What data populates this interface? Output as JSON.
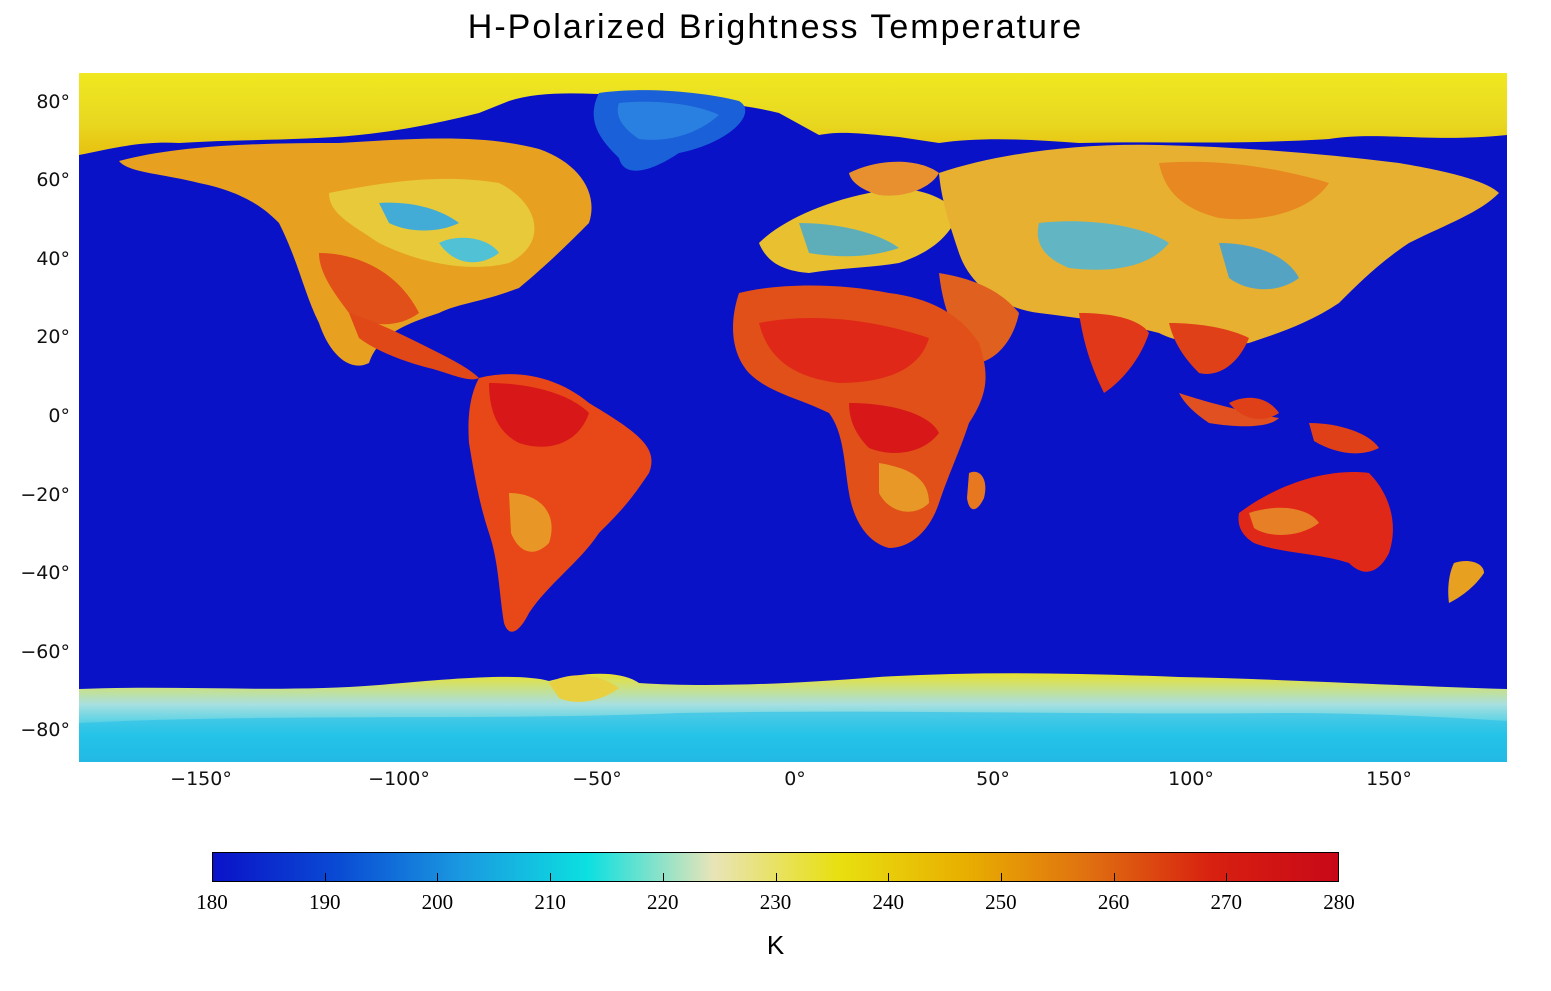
{
  "title": "H-Polarized Brightness Temperature",
  "map": {
    "extent": {
      "lon": [
        -180,
        180
      ],
      "lat": [
        -87,
        87
      ]
    },
    "ocean_color": "#0a12c8",
    "ocean_value_K": 180,
    "regions": [
      {
        "name": "Arctic / far north",
        "value_K": 238
      },
      {
        "name": "Greenland interior",
        "value_K": 205
      },
      {
        "name": "North America",
        "value_K": 252
      },
      {
        "name": "Central America / Mexico",
        "value_K": 265
      },
      {
        "name": "South America",
        "value_K": 268
      },
      {
        "name": "Europe",
        "value_K": 245
      },
      {
        "name": "Africa",
        "value_K": 268
      },
      {
        "name": "Arabia",
        "value_K": 262
      },
      {
        "name": "Asia",
        "value_K": 252
      },
      {
        "name": "India / SE Asia",
        "value_K": 268
      },
      {
        "name": "Australia",
        "value_K": 272
      },
      {
        "name": "Antarctica",
        "value_K": 220
      }
    ]
  },
  "axes": {
    "y_ticks": [
      "80°",
      "60°",
      "40°",
      "20°",
      "0°",
      "−20°",
      "−40°",
      "−60°",
      "−80°"
    ],
    "y_values": [
      80,
      60,
      40,
      20,
      0,
      -20,
      -40,
      -60,
      -80
    ],
    "x_ticks": [
      "−150°",
      "−100°",
      "−50°",
      "0°",
      "50°",
      "100°",
      "150°"
    ],
    "x_values": [
      -150,
      -100,
      -50,
      0,
      50,
      100,
      150
    ]
  },
  "colorbar": {
    "min": 180,
    "max": 280,
    "ticks": [
      "180",
      "190",
      "200",
      "210",
      "220",
      "230",
      "240",
      "250",
      "260",
      "270",
      "280"
    ],
    "unit": "K",
    "colors": [
      "#0a12c8",
      "#0a4bd4",
      "#1a9ae0",
      "#0ce0e0",
      "#e8e4b8",
      "#e8e010",
      "#e8b000",
      "#e07010",
      "#d82010",
      "#c80818"
    ]
  }
}
